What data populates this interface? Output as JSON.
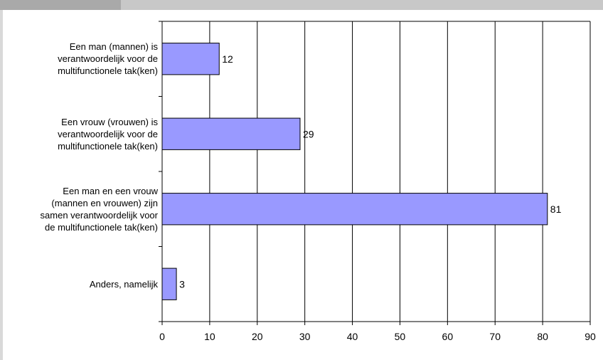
{
  "chart_data": {
    "type": "bar",
    "orientation": "horizontal",
    "title": "",
    "xlabel": "",
    "ylabel": "",
    "xlim": [
      0,
      90
    ],
    "ticks": [
      0,
      10,
      20,
      30,
      40,
      50,
      60,
      70,
      80,
      90
    ],
    "grid": "vertical",
    "categories": [
      "Een man (mannen) is verantwoordelijk voor de multifunctionele tak(ken)",
      "Een vrouw (vrouwen) is verantwoordelijk voor de multifunctionele tak(ken)",
      "Een man en een vrouw (mannen en vrouwen) zijn samen verantwoordelijk voor de multifunctionele tak(ken)",
      "Anders, namelijk"
    ],
    "category_lines": [
      [
        "Een man (mannen) is",
        "verantwoordelijk voor de",
        "multifunctionele tak(ken)"
      ],
      [
        "Een vrouw (vrouwen) is",
        "verantwoordelijk voor de",
        "multifunctionele tak(ken)"
      ],
      [
        "Een man en een vrouw",
        "(mannen en vrouwen) zijn",
        "samen verantwoordelijk voor",
        "de multifunctionele tak(ken)"
      ],
      [
        "Anders, namelijk"
      ]
    ],
    "values": [
      12,
      29,
      81,
      3
    ],
    "bar_color": "#9999ff",
    "bar_border": "#000000"
  }
}
